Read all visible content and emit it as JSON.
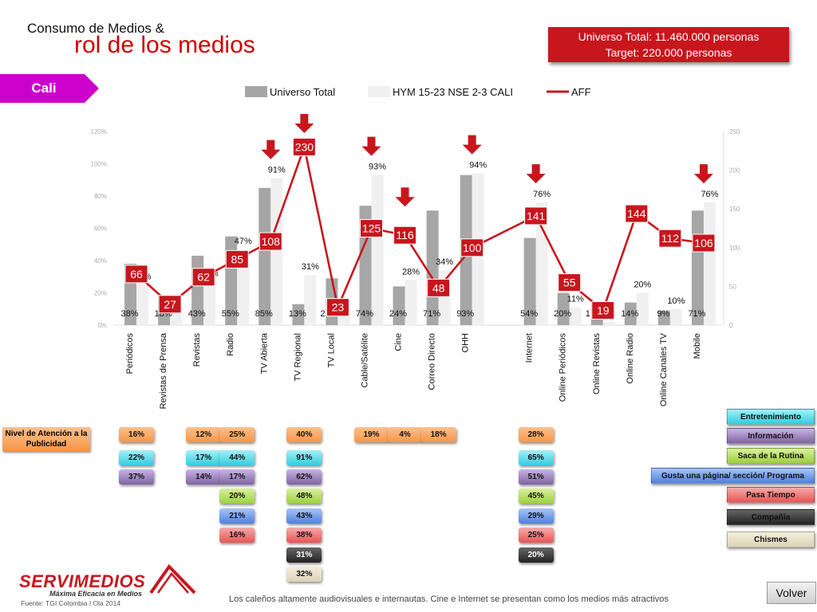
{
  "header": {
    "title_line1": "Consumo de Medios &",
    "title_line2": "rol de los medios",
    "universe": "Universo Total: 11.460.000 personas",
    "target": "Target: 220.000 personas"
  },
  "city": "Cali",
  "chart_data": {
    "type": "bar",
    "categories": [
      "Periódicos",
      "Revistas de Prensa",
      "Revistas",
      "Radio",
      "TV Abierta",
      "TV Regional",
      "TV Local",
      "Cable/Satélite",
      "Cine",
      "Correo Directo",
      "OHH",
      "Internet",
      "Online Periódicos",
      "Online Revistas",
      "Online Radio",
      "Online Canales TV",
      "Mobile"
    ],
    "category_gap_after": [
      "OHH"
    ],
    "series": [
      {
        "name": "Universo Total",
        "color": "#a6a6a6",
        "values": [
          38,
          18,
          43,
          55,
          85,
          13,
          29,
          74,
          24,
          71,
          93,
          54,
          20,
          13,
          14,
          9,
          71
        ],
        "labels": [
          "38%",
          "18%",
          "43%",
          "55%",
          "85%",
          "13%",
          "2…%",
          "74%",
          "24%",
          "71%",
          "93%",
          "54%",
          "20%",
          "1…%",
          "14%",
          "9%",
          "71%"
        ]
      },
      {
        "name": "HYM 15-23 NSE 2-3 CALI",
        "color": "#f0f0f0",
        "values": [
          25,
          8,
          27,
          47,
          91,
          31,
          5,
          93,
          28,
          34,
          94,
          76,
          11,
          2,
          20,
          10,
          76
        ],
        "labels": [
          "25%",
          "",
          "27%",
          "47%",
          "91%",
          "31%",
          "",
          "93%",
          "28%",
          "34%",
          "94%",
          "76%",
          "11%",
          "",
          "20%",
          "10%",
          "76%"
        ]
      },
      {
        "name": "AFF",
        "color": "#c8161d",
        "type": "line",
        "axis": "right",
        "values": [
          66,
          27,
          62,
          85,
          108,
          230,
          23,
          125,
          116,
          48,
          100,
          141,
          55,
          19,
          144,
          112,
          106
        ]
      }
    ],
    "y_left": {
      "min": 0,
      "max": 120,
      "ticks": [
        "0%",
        "20%",
        "40%",
        "60%",
        "80%",
        "100%",
        "120%"
      ]
    },
    "y_right": {
      "min": 0,
      "max": 250,
      "ticks": [
        "0",
        "50",
        "100",
        "150",
        "200",
        "250"
      ]
    },
    "highlight_arrows": [
      "TV Abierta",
      "TV Regional",
      "Cable/Satélite",
      "Cine",
      "OHH",
      "Internet",
      "Mobile"
    ],
    "legend_position": "top"
  },
  "attention": {
    "label": "Nivel de Atención a la Publicidad",
    "columns": [
      {
        "category": "Periódicos",
        "badges": [
          {
            "value": "16%",
            "color": "orange"
          },
          {
            "value": "22%",
            "color": "cyan"
          },
          {
            "value": "37%",
            "color": "purple"
          }
        ]
      },
      {
        "category": "Revistas",
        "badges": [
          {
            "value": "12%",
            "color": "orange"
          },
          {
            "value": "17%",
            "color": "cyan"
          },
          {
            "value": "14%",
            "color": "purple"
          }
        ]
      },
      {
        "category": "Radio",
        "badges": [
          {
            "value": "25%",
            "color": "orange"
          },
          {
            "value": "44%",
            "color": "cyan"
          },
          {
            "value": "17%",
            "color": "purple"
          },
          {
            "value": "20%",
            "color": "green"
          },
          {
            "value": "21%",
            "color": "blue"
          },
          {
            "value": "16%",
            "color": "red"
          }
        ]
      },
      {
        "category": "TV Regional",
        "badges": [
          {
            "value": "40%",
            "color": "orange"
          },
          {
            "value": "91%",
            "color": "cyan"
          },
          {
            "value": "62%",
            "color": "purple"
          },
          {
            "value": "48%",
            "color": "green"
          },
          {
            "value": "43%",
            "color": "blue"
          },
          {
            "value": "38%",
            "color": "red"
          },
          {
            "value": "31%",
            "color": "black"
          },
          {
            "value": "32%",
            "color": "beige"
          }
        ]
      },
      {
        "category": "Cable/Satélite",
        "badges": [
          {
            "value": "19%",
            "color": "orange"
          }
        ]
      },
      {
        "category": "Cine",
        "badges": [
          {
            "value": "4%",
            "color": "orange"
          }
        ]
      },
      {
        "category": "Correo Directo",
        "badges": [
          {
            "value": "18%",
            "color": "orange"
          }
        ]
      },
      {
        "category": "Internet",
        "badges": [
          {
            "value": "28%",
            "color": "orange"
          },
          {
            "value": "65%",
            "color": "cyan"
          },
          {
            "value": "51%",
            "color": "purple"
          },
          {
            "value": "45%",
            "color": "green"
          },
          {
            "value": "29%",
            "color": "blue"
          },
          {
            "value": "25%",
            "color": "red"
          },
          {
            "value": "20%",
            "color": "black"
          }
        ]
      }
    ]
  },
  "role_legend": [
    {
      "label": "Entretenimiento",
      "color": "cyan"
    },
    {
      "label": "Información",
      "color": "purple"
    },
    {
      "label": "Saca de la Rutina",
      "color": "green"
    },
    {
      "label": "Gusta una página/ sección/ Programa",
      "color": "blue"
    },
    {
      "label": "Pasa Tiempo",
      "color": "red"
    },
    {
      "label": "Compañia",
      "color": "black"
    },
    {
      "label": "Chismes",
      "color": "beige"
    }
  ],
  "footer": {
    "logo": "SERVIMEDIOS",
    "slogan": "Máxima Eficacia en Medios",
    "source": "Fuente: TGI Colombia I Ola 2014",
    "note": "Los caleños altamente audiovisuales e internautas. Cine e Internet se presentan como los medios más atractivos",
    "back_label": "Volver"
  }
}
